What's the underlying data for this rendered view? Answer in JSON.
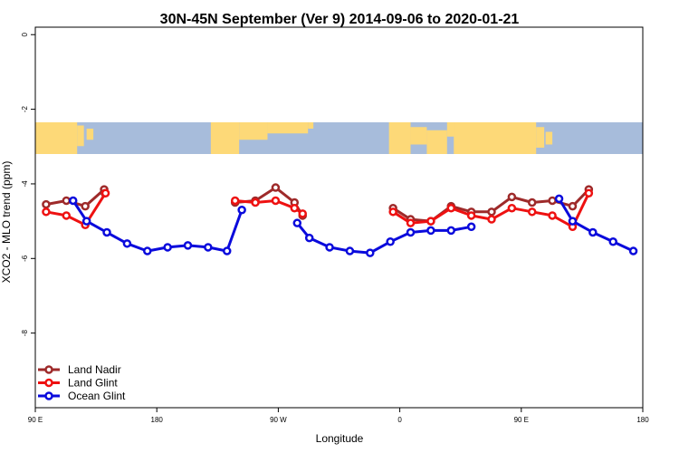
{
  "chart_data": {
    "type": "line",
    "title": "30N-45N September (Ver 9)   2014-09-06 to 2020-01-21",
    "xlabel": "Longitude",
    "ylabel": "XCO2 - MLO trend (ppm)",
    "xlim": [
      90,
      540
    ],
    "ylim": [
      -10,
      0.2
    ],
    "x_ticks": [
      {
        "value": 90,
        "label": "90 E"
      },
      {
        "value": 180,
        "label": "180"
      },
      {
        "value": 270,
        "label": "90 W"
      },
      {
        "value": 360,
        "label": "0"
      },
      {
        "value": 450,
        "label": "90 E"
      },
      {
        "value": 540,
        "label": "180"
      }
    ],
    "y_ticks": [
      {
        "value": 0,
        "label": "0"
      },
      {
        "value": -2,
        "label": "-2"
      },
      {
        "value": -4,
        "label": "-4"
      },
      {
        "value": -6,
        "label": "-6"
      },
      {
        "value": -8,
        "label": "-8"
      }
    ],
    "map_band": {
      "y_top": -2.35,
      "y_bottom": -3.2,
      "ocean_color": "#a7bcdb",
      "land_color": "#fdd978"
    },
    "legend_position": "bottom-left",
    "series": [
      {
        "name": "Land Nadir",
        "color": "#9e2a2a",
        "segments": [
          [
            [
              98,
              -4.55
            ],
            [
              113,
              -4.45
            ],
            [
              127,
              -4.6
            ],
            [
              141,
              -4.15
            ],
            [
              141.5,
              -4.25
            ]
          ],
          [
            [
              238,
              -4.5
            ],
            [
              253,
              -4.45
            ],
            [
              268,
              -4.1
            ],
            [
              282,
              -4.5
            ],
            [
              288,
              -4.85
            ]
          ],
          [
            [
              355,
              -4.65
            ],
            [
              368,
              -4.95
            ],
            [
              383,
              -5.0
            ],
            [
              398,
              -4.6
            ],
            [
              413,
              -4.75
            ],
            [
              428,
              -4.75
            ],
            [
              443,
              -4.35
            ],
            [
              458,
              -4.5
            ],
            [
              473,
              -4.45
            ],
            [
              488,
              -4.6
            ],
            [
              500,
              -4.15
            ]
          ]
        ]
      },
      {
        "name": "Land Glint",
        "color": "#ee1111",
        "segments": [
          [
            [
              98,
              -4.75
            ],
            [
              113,
              -4.85
            ],
            [
              127,
              -5.1
            ],
            [
              142,
              -4.25
            ]
          ],
          [
            [
              238,
              -4.45
            ],
            [
              253,
              -4.5
            ],
            [
              268,
              -4.45
            ],
            [
              282,
              -4.65
            ],
            [
              288,
              -4.8
            ]
          ],
          [
            [
              355,
              -4.75
            ],
            [
              368,
              -5.05
            ],
            [
              383,
              -5.0
            ],
            [
              398,
              -4.65
            ],
            [
              413,
              -4.85
            ],
            [
              428,
              -4.95
            ],
            [
              443,
              -4.65
            ],
            [
              458,
              -4.75
            ],
            [
              473,
              -4.85
            ],
            [
              488,
              -5.15
            ],
            [
              500,
              -4.25
            ]
          ]
        ]
      },
      {
        "name": "Ocean Glint",
        "color": "#0a0adc",
        "segments": [
          [
            [
              118,
              -4.45
            ],
            [
              128,
              -5.0
            ],
            [
              143,
              -5.3
            ],
            [
              158,
              -5.6
            ],
            [
              173,
              -5.8
            ],
            [
              188,
              -5.7
            ],
            [
              203,
              -5.65
            ],
            [
              218,
              -5.7
            ],
            [
              232,
              -5.8
            ],
            [
              243,
              -4.7
            ]
          ],
          [
            [
              284,
              -5.05
            ],
            [
              293,
              -5.45
            ],
            [
              308,
              -5.7
            ],
            [
              323,
              -5.8
            ],
            [
              338,
              -5.85
            ],
            [
              353,
              -5.55
            ],
            [
              368,
              -5.3
            ],
            [
              383,
              -5.25
            ],
            [
              398,
              -5.25
            ],
            [
              413,
              -5.15
            ]
          ],
          [
            [
              478,
              -4.4
            ],
            [
              488,
              -5.0
            ],
            [
              503,
              -5.3
            ],
            [
              518,
              -5.55
            ],
            [
              533,
              -5.8
            ]
          ]
        ]
      }
    ]
  }
}
